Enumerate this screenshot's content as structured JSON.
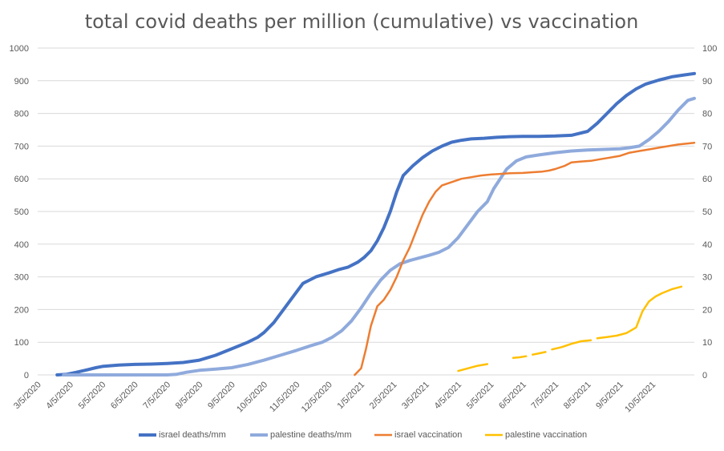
{
  "chart_data": {
    "type": "line",
    "title": "total covid deaths per million (cumulative) vs vaccination",
    "x_tick_labels": [
      "3/5/2020",
      "4/5/2020",
      "5/5/2020",
      "6/5/2020",
      "7/5/2020",
      "8/5/2020",
      "9/5/2020",
      "10/5/2020",
      "11/5/2020",
      "12/5/2020",
      "1/5/2021",
      "2/5/2021",
      "3/5/2021",
      "4/5/2021",
      "5/5/2021",
      "6/5/2021",
      "7/5/2021",
      "8/5/2021",
      "9/5/2021",
      "10/5/2021"
    ],
    "x_unit": "months since 3/5/2020",
    "xlim": [
      0,
      20.3
    ],
    "y_left": {
      "ylim": [
        0,
        1000
      ],
      "ticks": [
        "0",
        "100",
        "200",
        "300",
        "400",
        "500",
        "600",
        "700",
        "800",
        "900",
        "1000"
      ]
    },
    "y_right": {
      "ylim": [
        0,
        100
      ],
      "ticks": [
        "0",
        "10",
        "20",
        "30",
        "40",
        "50",
        "60",
        "70",
        "80",
        "90",
        "100"
      ]
    },
    "legend_position": "bottom",
    "series": [
      {
        "name": "israel deaths/mm",
        "axis": "left",
        "color": "#4472c4",
        "width": 4,
        "x": [
          0.6,
          0.9,
          1.2,
          1.5,
          1.8,
          2.0,
          2.5,
          3.0,
          3.5,
          4.0,
          4.5,
          5.0,
          5.5,
          6.0,
          6.5,
          6.8,
          7.0,
          7.3,
          7.6,
          7.9,
          8.2,
          8.6,
          9.0,
          9.3,
          9.6,
          9.9,
          10.1,
          10.3,
          10.5,
          10.7,
          10.9,
          11.1,
          11.3,
          11.6,
          11.9,
          12.2,
          12.5,
          12.8,
          13.1,
          13.4,
          13.8,
          14.2,
          14.6,
          15.0,
          15.5,
          16.0,
          16.5,
          17.0,
          17.3,
          17.6,
          17.9,
          18.2,
          18.5,
          18.8,
          19.2,
          19.6,
          20.0,
          20.3
        ],
        "y": [
          0,
          2,
          8,
          15,
          22,
          26,
          30,
          32,
          33,
          35,
          38,
          45,
          60,
          80,
          100,
          115,
          130,
          160,
          200,
          240,
          280,
          300,
          312,
          322,
          330,
          345,
          360,
          380,
          410,
          450,
          500,
          560,
          610,
          640,
          665,
          685,
          700,
          712,
          718,
          722,
          724,
          727,
          729,
          730,
          730,
          731,
          733,
          745,
          770,
          800,
          830,
          855,
          875,
          890,
          902,
          912,
          918,
          922
        ]
      },
      {
        "name": "palestine deaths/mm",
        "axis": "left",
        "color": "#8faadc",
        "width": 4,
        "x": [
          0.8,
          1.5,
          2.5,
          3.5,
          4.0,
          4.3,
          4.6,
          5.0,
          5.5,
          6.0,
          6.5,
          7.0,
          7.5,
          8.0,
          8.4,
          8.8,
          9.1,
          9.4,
          9.7,
          10.0,
          10.3,
          10.6,
          10.9,
          11.2,
          11.5,
          11.8,
          12.1,
          12.4,
          12.7,
          13.0,
          13.3,
          13.6,
          13.9,
          14.1,
          14.3,
          14.5,
          14.8,
          15.1,
          15.5,
          16.0,
          16.5,
          17.0,
          17.5,
          18.0,
          18.3,
          18.6,
          18.9,
          19.2,
          19.5,
          19.8,
          20.1,
          20.3
        ],
        "y": [
          0,
          0,
          0,
          0,
          0,
          2,
          8,
          14,
          18,
          22,
          32,
          45,
          60,
          75,
          88,
          100,
          115,
          135,
          165,
          205,
          250,
          290,
          320,
          340,
          350,
          358,
          366,
          375,
          390,
          420,
          460,
          500,
          530,
          570,
          600,
          630,
          655,
          667,
          673,
          680,
          685,
          688,
          690,
          692,
          695,
          700,
          720,
          745,
          775,
          810,
          840,
          846
        ]
      },
      {
        "name": "israel vaccination",
        "axis": "right",
        "color": "#ed7d31",
        "width": 2.5,
        "x": [
          9.8,
          10.0,
          10.15,
          10.3,
          10.5,
          10.7,
          10.9,
          11.1,
          11.3,
          11.5,
          11.7,
          11.9,
          12.1,
          12.3,
          12.5,
          12.8,
          13.1,
          13.4,
          13.7,
          14.0,
          14.3,
          14.6,
          15.0,
          15.3,
          15.6,
          15.8,
          16.0,
          16.3,
          16.5,
          16.8,
          17.1,
          17.4,
          17.7,
          18.0,
          18.3,
          18.6,
          18.9,
          19.2,
          19.5,
          19.8,
          20.1,
          20.3
        ],
        "y": [
          0,
          2,
          8,
          15,
          21,
          23,
          26,
          30,
          35,
          39,
          44,
          49,
          53,
          56,
          58,
          59,
          60,
          60.5,
          61,
          61.3,
          61.5,
          61.7,
          61.8,
          62,
          62.2,
          62.5,
          63,
          64,
          65,
          65.3,
          65.5,
          66,
          66.5,
          67,
          68,
          68.5,
          69,
          69.5,
          70,
          70.5,
          70.8,
          71
        ]
      },
      {
        "name": "palestine vaccination",
        "axis": "right",
        "color": "#ffc000",
        "width": 2.5,
        "segments": [
          {
            "x": [
              13.0,
              13.3,
              13.6,
              13.9
            ],
            "y": [
              1.2,
              2.0,
              2.8,
              3.3
            ]
          },
          {
            "x": [
              14.7,
              14.9,
              15.1
            ],
            "y": [
              5.2,
              5.4,
              5.7
            ]
          },
          {
            "x": [
              15.3,
              15.5,
              15.7
            ],
            "y": [
              6.2,
              6.6,
              7.0
            ]
          },
          {
            "x": [
              15.9,
              16.2,
              16.5,
              16.8,
              17.1
            ],
            "y": [
              7.8,
              8.5,
              9.5,
              10.3,
              10.6
            ]
          },
          {
            "x": [
              17.3,
              17.6,
              17.9,
              18.2,
              18.5,
              18.7,
              18.9,
              19.1,
              19.3,
              19.6,
              19.9
            ],
            "y": [
              11.2,
              11.6,
              12.0,
              12.8,
              14.5,
              19.5,
              22.5,
              24.0,
              25.0,
              26.2,
              27.0
            ]
          }
        ]
      }
    ]
  }
}
